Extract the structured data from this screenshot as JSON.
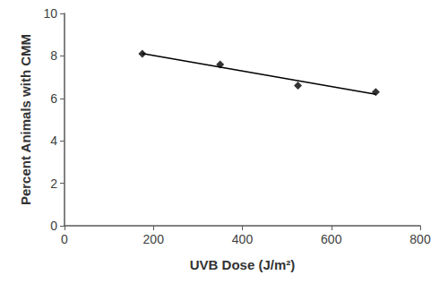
{
  "chart_data": {
    "type": "scatter",
    "x_label": "UVB Dose (J/m²)",
    "y_label": "Percent Animals with CMM",
    "xlim": [
      0,
      800
    ],
    "xticks": [
      0,
      200,
      400,
      600,
      800
    ],
    "ylim": [
      0,
      10
    ],
    "yticks": [
      0,
      2,
      4,
      6,
      8,
      10
    ],
    "grid": false,
    "series": [
      {
        "type": "scatter",
        "marker": "diamond",
        "color": "#000000",
        "x": [
          175,
          350,
          525,
          700
        ],
        "values": [
          8.1,
          7.6,
          6.6,
          6.3
        ]
      },
      {
        "type": "line",
        "line_style": "solid",
        "color": "#000000",
        "x": [
          175,
          700
        ],
        "values": [
          8.11,
          6.19
        ]
      }
    ]
  }
}
